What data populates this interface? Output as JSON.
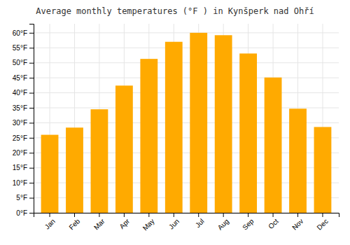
{
  "chart_data": {
    "type": "bar",
    "title": "Average monthly temperatures (°F ) in Kynšperk nad Ohří",
    "categories": [
      "Jan",
      "Feb",
      "Mar",
      "Apr",
      "May",
      "Jun",
      "Jul",
      "Aug",
      "Sep",
      "Oct",
      "Nov",
      "Dec"
    ],
    "values": [
      26.0,
      28.4,
      34.5,
      42.4,
      51.3,
      57.0,
      60.0,
      59.2,
      53.1,
      45.1,
      34.7,
      28.6
    ],
    "color": "#FFAA00",
    "ylim": [
      0,
      63
    ],
    "yticks": [
      {
        "value": 0,
        "label": "0°F"
      },
      {
        "value": 5,
        "label": "5°F"
      },
      {
        "value": 10,
        "label": "10°F"
      },
      {
        "value": 15,
        "label": "15°F"
      },
      {
        "value": 20,
        "label": "20°F"
      },
      {
        "value": 25,
        "label": "25°F"
      },
      {
        "value": 30,
        "label": "30°F"
      },
      {
        "value": 35,
        "label": "35°F"
      },
      {
        "value": 40,
        "label": "40°F"
      },
      {
        "value": 45,
        "label": "45°F"
      },
      {
        "value": 50,
        "label": "50°F"
      },
      {
        "value": 55,
        "label": "55°F"
      },
      {
        "value": 60,
        "label": "60°F"
      }
    ],
    "grid": true
  }
}
